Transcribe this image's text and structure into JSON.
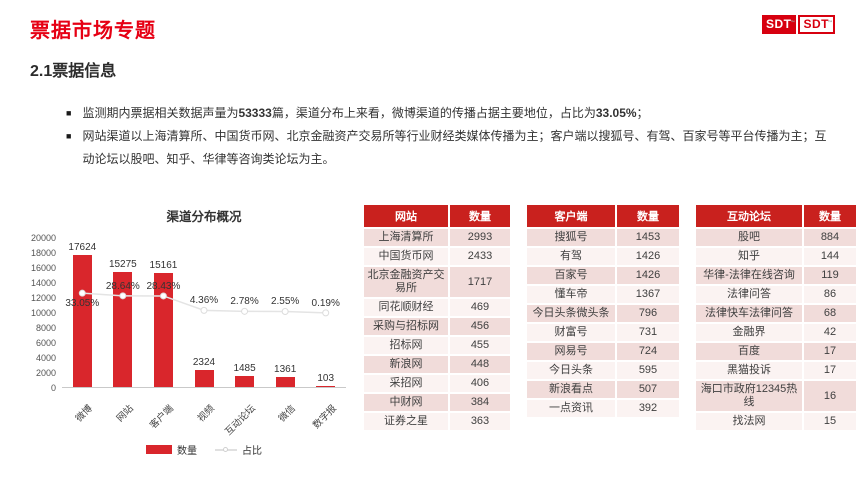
{
  "page": {
    "title": "票据市场专题",
    "section_title": "2.1票据信息"
  },
  "logo": {
    "left": "SDT",
    "right": "SDT",
    "tm": "™"
  },
  "bullets": [
    {
      "parts": [
        {
          "t": "监测期内票据相关数据声量为",
          "b": false
        },
        {
          "t": "53333",
          "b": true
        },
        {
          "t": "篇，渠道分布上来看，微博渠道的传播占据主要地位，占比为",
          "b": false
        },
        {
          "t": "33.05%",
          "b": true
        },
        {
          "t": "；",
          "b": false
        }
      ]
    },
    {
      "parts": [
        {
          "t": "网站渠道以上海清算所、中国货币网、北京金融资产交易所等行业财经类媒体传播为主；客户端以搜狐号、有驾、百家号等平台传播为主；互动论坛以股吧、知乎、华律等咨询类论坛为主。",
          "b": false
        }
      ]
    }
  ],
  "chart_data": {
    "type": "bar",
    "title": "渠道分布概况",
    "categories": [
      "微博",
      "网站",
      "客户端",
      "视频",
      "互动论坛",
      "微信",
      "数字报"
    ],
    "series": [
      {
        "name": "数量",
        "type": "bar",
        "values": [
          17624,
          15275,
          15161,
          2324,
          1485,
          1361,
          103
        ]
      },
      {
        "name": "占比",
        "type": "line",
        "unit": "%",
        "values": [
          33.05,
          28.64,
          28.43,
          4.36,
          2.78,
          2.55,
          0.19
        ]
      }
    ],
    "ylim": [
      0,
      20000
    ],
    "ytick_step": 2000,
    "legend_position": "bottom",
    "grid": false
  },
  "tables": [
    {
      "headers": [
        "网站",
        "数量"
      ],
      "rows": [
        [
          "上海清算所",
          2993
        ],
        [
          "中国货币网",
          2433
        ],
        [
          "北京金融资产交易所",
          1717
        ],
        [
          "同花顺财经",
          469
        ],
        [
          "采购与招标网",
          456
        ],
        [
          "招标网",
          455
        ],
        [
          "新浪网",
          448
        ],
        [
          "采招网",
          406
        ],
        [
          "中财网",
          384
        ],
        [
          "证券之星",
          363
        ]
      ]
    },
    {
      "headers": [
        "客户端",
        "数量"
      ],
      "rows": [
        [
          "搜狐号",
          1453
        ],
        [
          "有驾",
          1426
        ],
        [
          "百家号",
          1426
        ],
        [
          "懂车帝",
          1367
        ],
        [
          "今日头条微头条",
          796
        ],
        [
          "财富号",
          731
        ],
        [
          "网易号",
          724
        ],
        [
          "今日头条",
          595
        ],
        [
          "新浪看点",
          507
        ],
        [
          "一点资讯",
          392
        ]
      ]
    },
    {
      "headers": [
        "互动论坛",
        "数量"
      ],
      "rows": [
        [
          "股吧",
          884
        ],
        [
          "知乎",
          144
        ],
        [
          "华律-法律在线咨询",
          119
        ],
        [
          "法律问答",
          86
        ],
        [
          "法律快车法律问答",
          68
        ],
        [
          "金融界",
          42
        ],
        [
          "百度",
          17
        ],
        [
          "黑猫投诉",
          17
        ],
        [
          "海口市政府12345热线",
          16
        ],
        [
          "找法网",
          15
        ]
      ]
    }
  ],
  "colors": {
    "title_red": "#e60014",
    "bar_red": "#d9262c",
    "table_header_red": "#c9211e",
    "row_pink": "#f1dcda",
    "row_light": "#fbf3f2",
    "logo_red": "#d7000f"
  }
}
